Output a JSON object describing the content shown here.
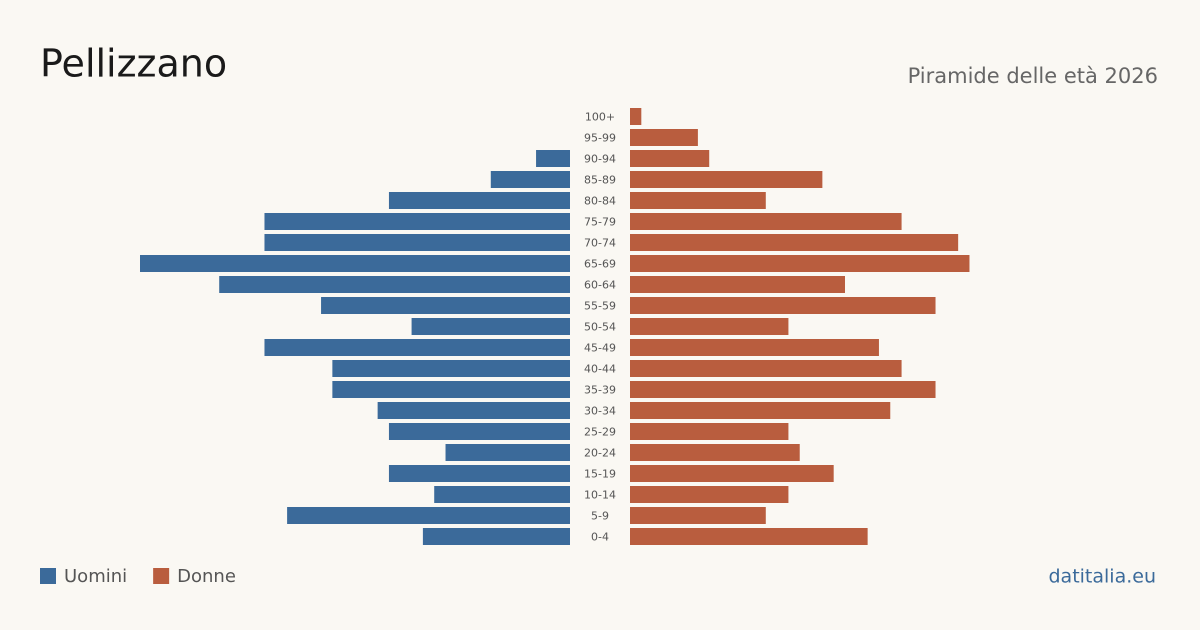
{
  "chart_data": {
    "type": "pyramid",
    "title": "Pellizzano",
    "subtitle": "Piramide delle età 2026",
    "source": "datitalia.eu",
    "categories": [
      "100+",
      "95-99",
      "90-94",
      "85-89",
      "80-84",
      "75-79",
      "70-74",
      "65-69",
      "60-64",
      "55-59",
      "50-54",
      "45-49",
      "40-44",
      "35-39",
      "30-34",
      "25-29",
      "20-24",
      "15-19",
      "10-14",
      "5-9",
      "0-4"
    ],
    "series": [
      {
        "name": "Uomini",
        "color": "#3b6a9a",
        "values": [
          0,
          0,
          3,
          7,
          16,
          27,
          27,
          38,
          31,
          22,
          14,
          27,
          21,
          21,
          17,
          16,
          11,
          16,
          12,
          25,
          13
        ]
      },
      {
        "name": "Donne",
        "color": "#b95d3e",
        "values": [
          1,
          6,
          7,
          17,
          12,
          24,
          29,
          30,
          19,
          27,
          14,
          22,
          24,
          27,
          23,
          14,
          15,
          18,
          14,
          12,
          21
        ]
      }
    ],
    "legend": "bottom-left"
  }
}
